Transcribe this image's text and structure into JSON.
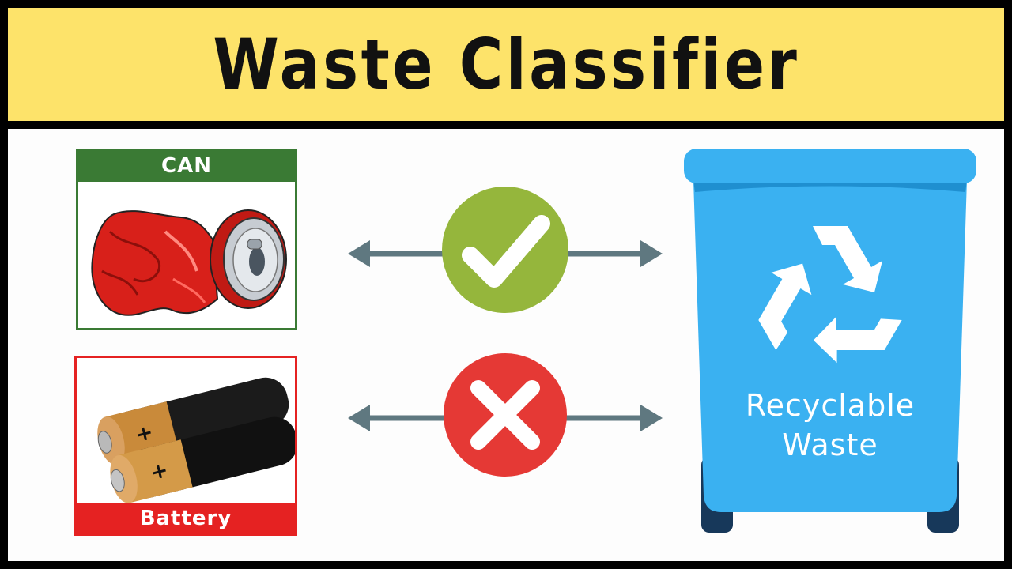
{
  "header": {
    "title": "Waste Classifier"
  },
  "items": [
    {
      "label": "CAN",
      "verdict": "check",
      "color": "#3a7a34"
    },
    {
      "label": "Battery",
      "verdict": "cross",
      "color": "#e52222"
    }
  ],
  "bin": {
    "label": "Recyclable\nWaste",
    "icon": "recycle-icon",
    "color": "#3ab1f1"
  },
  "colors": {
    "header_bg": "#fde36a",
    "check_green": "#95b63c",
    "cross_red": "#e53935",
    "arrow": "#5f7880"
  }
}
